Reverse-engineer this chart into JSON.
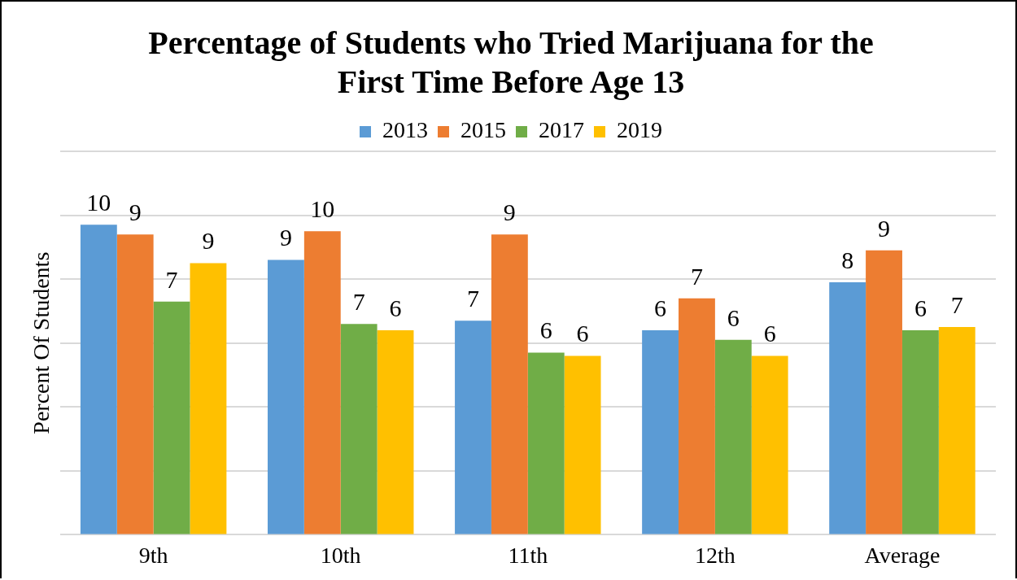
{
  "chart_data": {
    "type": "bar",
    "title": "Percentage of Students who Tried Marijuana for the First Time Before Age 13",
    "ylabel": "Percent Of Students",
    "categories": [
      "9th",
      "10th",
      "11th",
      "12th",
      "Average"
    ],
    "series": [
      {
        "name": "2013",
        "color": "#5b9bd5",
        "values": [
          9.7,
          8.6,
          6.7,
          6.4,
          7.9
        ],
        "value_labels": [
          "10",
          "9",
          "7",
          "6",
          "8"
        ]
      },
      {
        "name": "2015",
        "color": "#ed7d31",
        "values": [
          9.4,
          9.5,
          9.4,
          7.4,
          8.9
        ],
        "value_labels": [
          "9",
          "10",
          "9",
          "7",
          "9"
        ]
      },
      {
        "name": "2017",
        "color": "#70ad47",
        "values": [
          7.3,
          6.6,
          5.7,
          6.1,
          6.4
        ],
        "value_labels": [
          "7",
          "7",
          "6",
          "6",
          "6"
        ]
      },
      {
        "name": "2019",
        "color": "#ffc000",
        "values": [
          8.5,
          6.4,
          5.6,
          5.6,
          6.5
        ],
        "value_labels": [
          "9",
          "6",
          "6",
          "6",
          "7"
        ]
      }
    ],
    "ylim": [
      0,
      12
    ],
    "yticks": [
      {
        "value": 0,
        "label": null
      },
      {
        "value": 2,
        "label": null
      },
      {
        "value": 4,
        "label": null
      },
      {
        "value": 6,
        "label": null
      },
      {
        "value": 8,
        "label": null
      },
      {
        "value": 10,
        "label": null
      },
      {
        "value": 12,
        "label": null
      }
    ],
    "grid": "y",
    "legend": "top",
    "tick_labels": "x"
  }
}
